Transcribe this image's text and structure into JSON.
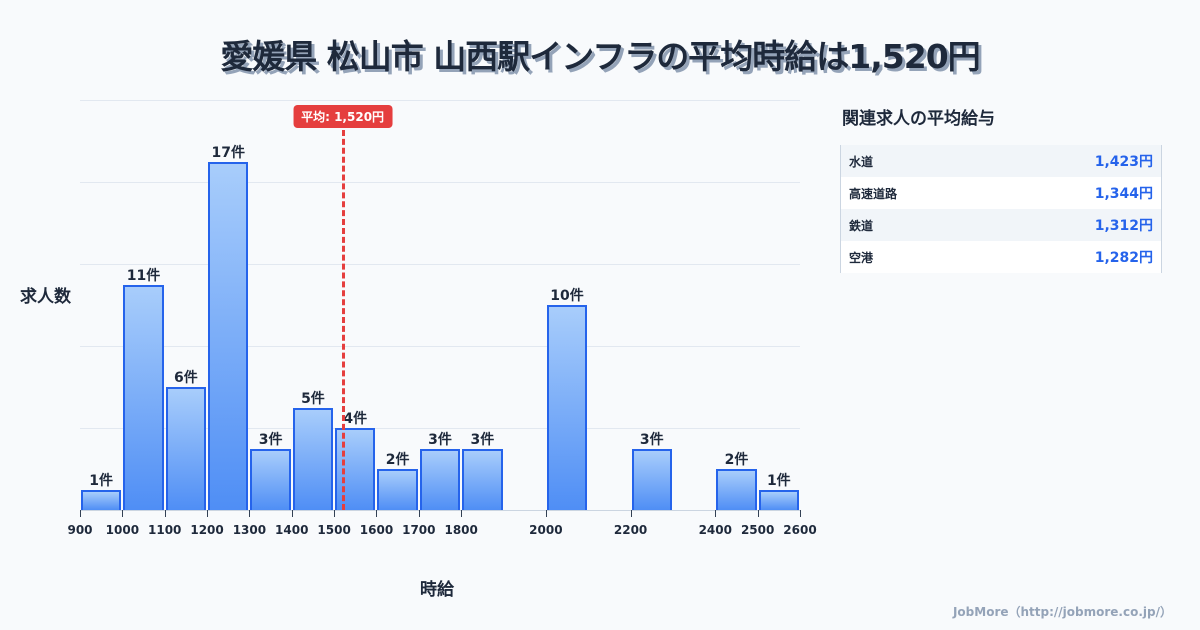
{
  "title": "愛媛県 松山市 山西駅インフラの平均時給は1,520円",
  "average_badge": "平均: 1,520円",
  "y_axis_label": "求人数",
  "x_axis_label": "時給",
  "side_panel": {
    "title": "関連求人の平均給与",
    "rows": [
      {
        "name": "水道",
        "value": "1,423円"
      },
      {
        "name": "高速道路",
        "value": "1,344円"
      },
      {
        "name": "鉄道",
        "value": "1,312円"
      },
      {
        "name": "空港",
        "value": "1,282円"
      }
    ]
  },
  "footer": "JobMore（http://jobmore.co.jp/）",
  "colors": {
    "bar_border": "#2563eb",
    "bar_top": "#a8cdfb",
    "bar_bottom": "#4f8ef5",
    "average_line": "#e53e3e",
    "value_text": "#2563eb"
  },
  "chart_data": {
    "type": "bar",
    "title": "愛媛県 松山市 山西駅インフラの平均時給は1,520円",
    "xlabel": "時給",
    "ylabel": "求人数",
    "bins": [
      {
        "from": 900,
        "to": 1000,
        "count": 1,
        "label": "1件"
      },
      {
        "from": 1000,
        "to": 1100,
        "count": 11,
        "label": "11件"
      },
      {
        "from": 1100,
        "to": 1200,
        "count": 6,
        "label": "6件"
      },
      {
        "from": 1200,
        "to": 1300,
        "count": 17,
        "label": "17件"
      },
      {
        "from": 1300,
        "to": 1400,
        "count": 3,
        "label": "3件"
      },
      {
        "from": 1400,
        "to": 1500,
        "count": 5,
        "label": "5件"
      },
      {
        "from": 1500,
        "to": 1600,
        "count": 4,
        "label": "4件"
      },
      {
        "from": 1600,
        "to": 1700,
        "count": 2,
        "label": "2件"
      },
      {
        "from": 1700,
        "to": 1800,
        "count": 3,
        "label": "3件"
      },
      {
        "from": 1800,
        "to": 1900,
        "count": 3,
        "label": "3件"
      },
      {
        "from": 2000,
        "to": 2100,
        "count": 10,
        "label": "10件"
      },
      {
        "from": 2200,
        "to": 2300,
        "count": 3,
        "label": "3件"
      },
      {
        "from": 2400,
        "to": 2500,
        "count": 2,
        "label": "2件"
      },
      {
        "from": 2500,
        "to": 2600,
        "count": 1,
        "label": "1件"
      }
    ],
    "x_ticks": [
      900,
      1000,
      1100,
      1200,
      1300,
      1400,
      1500,
      1600,
      1700,
      1800,
      2000,
      2200,
      2400,
      2500,
      2600
    ],
    "xlim": [
      900,
      2600
    ],
    "ylim": [
      0,
      20
    ],
    "grid": true,
    "gridlines_y": [
      4,
      8,
      12,
      16,
      20
    ],
    "average": 1520,
    "average_label": "平均: 1,520円"
  }
}
